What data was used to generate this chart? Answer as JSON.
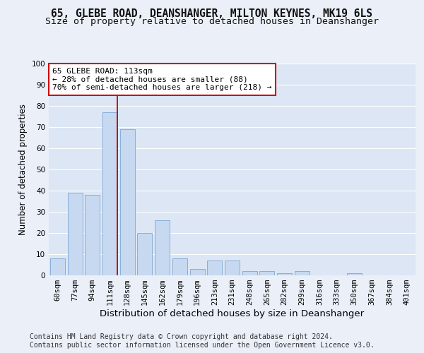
{
  "title_line1": "65, GLEBE ROAD, DEANSHANGER, MILTON KEYNES, MK19 6LS",
  "title_line2": "Size of property relative to detached houses in Deanshanger",
  "xlabel": "Distribution of detached houses by size in Deanshanger",
  "ylabel": "Number of detached properties",
  "categories": [
    "60sqm",
    "77sqm",
    "94sqm",
    "111sqm",
    "128sqm",
    "145sqm",
    "162sqm",
    "179sqm",
    "196sqm",
    "213sqm",
    "231sqm",
    "248sqm",
    "265sqm",
    "282sqm",
    "299sqm",
    "316sqm",
    "333sqm",
    "350sqm",
    "367sqm",
    "384sqm",
    "401sqm"
  ],
  "values": [
    8,
    39,
    38,
    77,
    69,
    20,
    26,
    8,
    3,
    7,
    7,
    2,
    2,
    1,
    2,
    0,
    0,
    1,
    0,
    0,
    0
  ],
  "bar_color": "#c6d9f0",
  "bar_edge_color": "#7da6d4",
  "background_color": "#eaeff8",
  "plot_bg_color": "#dce6f4",
  "grid_color": "#ffffff",
  "vline_index": 3,
  "vline_color": "#cc0000",
  "annotation_text": "65 GLEBE ROAD: 113sqm\n← 28% of detached houses are smaller (88)\n70% of semi-detached houses are larger (218) →",
  "annotation_box_color": "#ffffff",
  "annotation_box_edge": "#cc0000",
  "footer_line1": "Contains HM Land Registry data © Crown copyright and database right 2024.",
  "footer_line2": "Contains public sector information licensed under the Open Government Licence v3.0.",
  "ylim": [
    0,
    100
  ],
  "yticks": [
    0,
    10,
    20,
    30,
    40,
    50,
    60,
    70,
    80,
    90,
    100
  ],
  "title_fontsize": 10.5,
  "subtitle_fontsize": 9.5,
  "xlabel_fontsize": 9.5,
  "ylabel_fontsize": 8.5,
  "tick_fontsize": 7.5,
  "annot_fontsize": 8,
  "footer_fontsize": 7
}
